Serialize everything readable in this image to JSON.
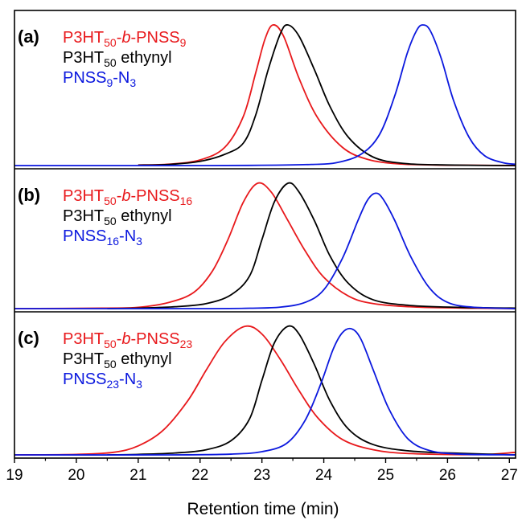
{
  "chart_data": {
    "type": "line",
    "xlabel": "Retention time (min)",
    "ylabel": "",
    "xlim": [
      19,
      27.1
    ],
    "x_ticks": [
      "19",
      "20",
      "21",
      "22",
      "23",
      "24",
      "25",
      "26",
      "27"
    ],
    "grid": false,
    "stacked_panels": true,
    "panels": [
      {
        "label": "(a)",
        "legend_placement": "top-left",
        "series": [
          {
            "color": "#e8191c",
            "legend_parts": [
              {
                "t": "P3HT"
              },
              {
                "t": "50",
                "sub": true
              },
              {
                "t": "-"
              },
              {
                "t": "b",
                "italic": true
              },
              {
                "t": "-PNSS"
              },
              {
                "t": "9",
                "sub": true
              }
            ],
            "peak_x": 23.18,
            "peak_height": 1.0,
            "points": [
              [
                21.0,
                0.004
              ],
              [
                21.5,
                0.01
              ],
              [
                22.0,
                0.04
              ],
              [
                22.4,
                0.13
              ],
              [
                22.7,
                0.35
              ],
              [
                22.9,
                0.66
              ],
              [
                23.05,
                0.9
              ],
              [
                23.18,
                1.0
              ],
              [
                23.35,
                0.92
              ],
              [
                23.6,
                0.62
              ],
              [
                23.9,
                0.34
              ],
              [
                24.3,
                0.13
              ],
              [
                24.7,
                0.045
              ],
              [
                25.2,
                0.012
              ],
              [
                25.8,
                0.004
              ],
              [
                26.5,
                0.002
              ],
              [
                27.1,
                0.0
              ]
            ]
          },
          {
            "color": "#000000",
            "legend_parts": [
              {
                "t": "P3HT"
              },
              {
                "t": "50",
                "sub": true
              },
              {
                "t": " ethynyl"
              }
            ],
            "peak_x": 23.42,
            "peak_height": 1.0,
            "points": [
              [
                21.0,
                0.003
              ],
              [
                21.5,
                0.008
              ],
              [
                22.0,
                0.03
              ],
              [
                22.4,
                0.08
              ],
              [
                22.7,
                0.16
              ],
              [
                22.9,
                0.36
              ],
              [
                23.1,
                0.68
              ],
              [
                23.3,
                0.94
              ],
              [
                23.42,
                1.0
              ],
              [
                23.6,
                0.92
              ],
              [
                23.85,
                0.68
              ],
              [
                24.1,
                0.42
              ],
              [
                24.4,
                0.2
              ],
              [
                24.8,
                0.06
              ],
              [
                25.3,
                0.015
              ],
              [
                26.0,
                0.004
              ],
              [
                27.1,
                0.0
              ]
            ]
          },
          {
            "color": "#0b18de",
            "legend_parts": [
              {
                "t": "PNSS"
              },
              {
                "t": "9",
                "sub": true
              },
              {
                "t": "-N"
              },
              {
                "t": "3",
                "sub": true
              }
            ],
            "peak_x": 25.6,
            "peak_height": 1.0,
            "points": [
              [
                19.0,
                0.0
              ],
              [
                22.0,
                0.0
              ],
              [
                23.0,
                0.002
              ],
              [
                23.8,
                0.008
              ],
              [
                24.2,
                0.02
              ],
              [
                24.6,
                0.08
              ],
              [
                24.9,
                0.22
              ],
              [
                25.15,
                0.5
              ],
              [
                25.35,
                0.8
              ],
              [
                25.5,
                0.96
              ],
              [
                25.6,
                1.0
              ],
              [
                25.72,
                0.96
              ],
              [
                25.9,
                0.76
              ],
              [
                26.1,
                0.46
              ],
              [
                26.35,
                0.2
              ],
              [
                26.6,
                0.07
              ],
              [
                26.9,
                0.02
              ],
              [
                27.1,
                0.01
              ]
            ]
          }
        ]
      },
      {
        "label": "(b)",
        "legend_placement": "top-left",
        "series": [
          {
            "color": "#e8191c",
            "legend_parts": [
              {
                "t": "P3HT"
              },
              {
                "t": "50",
                "sub": true
              },
              {
                "t": "-"
              },
              {
                "t": "b",
                "italic": true
              },
              {
                "t": "-PNSS"
              },
              {
                "t": "16",
                "sub": true
              }
            ],
            "peak_x": 22.93,
            "peak_height": 1.0,
            "points": [
              [
                19.0,
                0.0
              ],
              [
                20.5,
                0.004
              ],
              [
                21.0,
                0.01
              ],
              [
                21.5,
                0.05
              ],
              [
                21.9,
                0.13
              ],
              [
                22.2,
                0.3
              ],
              [
                22.45,
                0.55
              ],
              [
                22.7,
                0.85
              ],
              [
                22.93,
                1.0
              ],
              [
                23.15,
                0.93
              ],
              [
                23.4,
                0.72
              ],
              [
                23.7,
                0.46
              ],
              [
                24.0,
                0.25
              ],
              [
                24.4,
                0.1
              ],
              [
                24.8,
                0.04
              ],
              [
                25.5,
                0.012
              ],
              [
                26.5,
                0.003
              ],
              [
                27.1,
                0.0
              ]
            ]
          },
          {
            "color": "#000000",
            "legend_parts": [
              {
                "t": "P3HT"
              },
              {
                "t": "50",
                "sub": true
              },
              {
                "t": " ethynyl"
              }
            ],
            "peak_x": 23.42,
            "peak_height": 1.0,
            "points": [
              [
                20.5,
                0.0
              ],
              [
                21.0,
                0.004
              ],
              [
                21.6,
                0.015
              ],
              [
                22.1,
                0.04
              ],
              [
                22.5,
                0.11
              ],
              [
                22.8,
                0.26
              ],
              [
                23.0,
                0.55
              ],
              [
                23.2,
                0.85
              ],
              [
                23.42,
                1.0
              ],
              [
                23.6,
                0.93
              ],
              [
                23.85,
                0.7
              ],
              [
                24.1,
                0.42
              ],
              [
                24.4,
                0.2
              ],
              [
                24.8,
                0.07
              ],
              [
                25.4,
                0.025
              ],
              [
                26.2,
                0.01
              ],
              [
                27.1,
                0.004
              ]
            ]
          },
          {
            "color": "#0b18de",
            "legend_parts": [
              {
                "t": "PNSS"
              },
              {
                "t": "16",
                "sub": true
              },
              {
                "t": "-N"
              },
              {
                "t": "3",
                "sub": true
              }
            ],
            "peak_x": 24.83,
            "peak_height": 0.92,
            "points": [
              [
                19.0,
                0.0
              ],
              [
                22.0,
                0.0
              ],
              [
                22.8,
                0.003
              ],
              [
                23.3,
                0.012
              ],
              [
                23.7,
                0.05
              ],
              [
                24.0,
                0.15
              ],
              [
                24.3,
                0.4
              ],
              [
                24.55,
                0.7
              ],
              [
                24.7,
                0.86
              ],
              [
                24.83,
                0.92
              ],
              [
                24.95,
                0.88
              ],
              [
                25.15,
                0.7
              ],
              [
                25.4,
                0.42
              ],
              [
                25.7,
                0.17
              ],
              [
                26.0,
                0.05
              ],
              [
                26.4,
                0.012
              ],
              [
                27.1,
                0.0
              ]
            ]
          }
        ]
      },
      {
        "label": "(c)",
        "legend_placement": "top-left",
        "series": [
          {
            "color": "#e8191c",
            "legend_parts": [
              {
                "t": "P3HT"
              },
              {
                "t": "50",
                "sub": true
              },
              {
                "t": "-"
              },
              {
                "t": "b",
                "italic": true
              },
              {
                "t": "-PNSS"
              },
              {
                "t": "23",
                "sub": true
              }
            ],
            "peak_x": 22.73,
            "peak_height": 1.0,
            "points": [
              [
                19.0,
                0.0
              ],
              [
                20.0,
                0.004
              ],
              [
                20.6,
                0.02
              ],
              [
                21.0,
                0.07
              ],
              [
                21.4,
                0.19
              ],
              [
                21.8,
                0.42
              ],
              [
                22.1,
                0.66
              ],
              [
                22.4,
                0.88
              ],
              [
                22.73,
                1.0
              ],
              [
                23.0,
                0.94
              ],
              [
                23.3,
                0.74
              ],
              [
                23.6,
                0.5
              ],
              [
                23.9,
                0.29
              ],
              [
                24.3,
                0.12
              ],
              [
                24.8,
                0.04
              ],
              [
                25.4,
                0.01
              ],
              [
                26.5,
                0.002
              ],
              [
                27.1,
                0.02
              ]
            ]
          },
          {
            "color": "#000000",
            "legend_parts": [
              {
                "t": "P3HT"
              },
              {
                "t": "50",
                "sub": true
              },
              {
                "t": " ethynyl"
              }
            ],
            "peak_x": 23.42,
            "peak_height": 1.0,
            "points": [
              [
                20.5,
                0.0
              ],
              [
                21.0,
                0.004
              ],
              [
                21.6,
                0.015
              ],
              [
                22.1,
                0.04
              ],
              [
                22.5,
                0.11
              ],
              [
                22.8,
                0.28
              ],
              [
                23.0,
                0.58
              ],
              [
                23.2,
                0.87
              ],
              [
                23.42,
                1.0
              ],
              [
                23.6,
                0.94
              ],
              [
                23.85,
                0.7
              ],
              [
                24.1,
                0.42
              ],
              [
                24.4,
                0.2
              ],
              [
                24.8,
                0.08
              ],
              [
                25.4,
                0.03
              ],
              [
                26.2,
                0.012
              ],
              [
                27.1,
                0.0
              ]
            ]
          },
          {
            "color": "#0b18de",
            "legend_parts": [
              {
                "t": "PNSS"
              },
              {
                "t": "23",
                "sub": true
              },
              {
                "t": "-N"
              },
              {
                "t": "3",
                "sub": true
              }
            ],
            "peak_x": 24.45,
            "peak_height": 0.98,
            "points": [
              [
                19.0,
                0.0
              ],
              [
                21.5,
                0.0
              ],
              [
                22.5,
                0.006
              ],
              [
                23.0,
                0.025
              ],
              [
                23.4,
                0.09
              ],
              [
                23.7,
                0.27
              ],
              [
                23.95,
                0.55
              ],
              [
                24.15,
                0.82
              ],
              [
                24.3,
                0.95
              ],
              [
                24.45,
                0.98
              ],
              [
                24.6,
                0.9
              ],
              [
                24.8,
                0.66
              ],
              [
                25.05,
                0.36
              ],
              [
                25.35,
                0.13
              ],
              [
                25.7,
                0.035
              ],
              [
                26.2,
                0.006
              ],
              [
                27.1,
                0.0
              ]
            ]
          }
        ]
      }
    ]
  }
}
